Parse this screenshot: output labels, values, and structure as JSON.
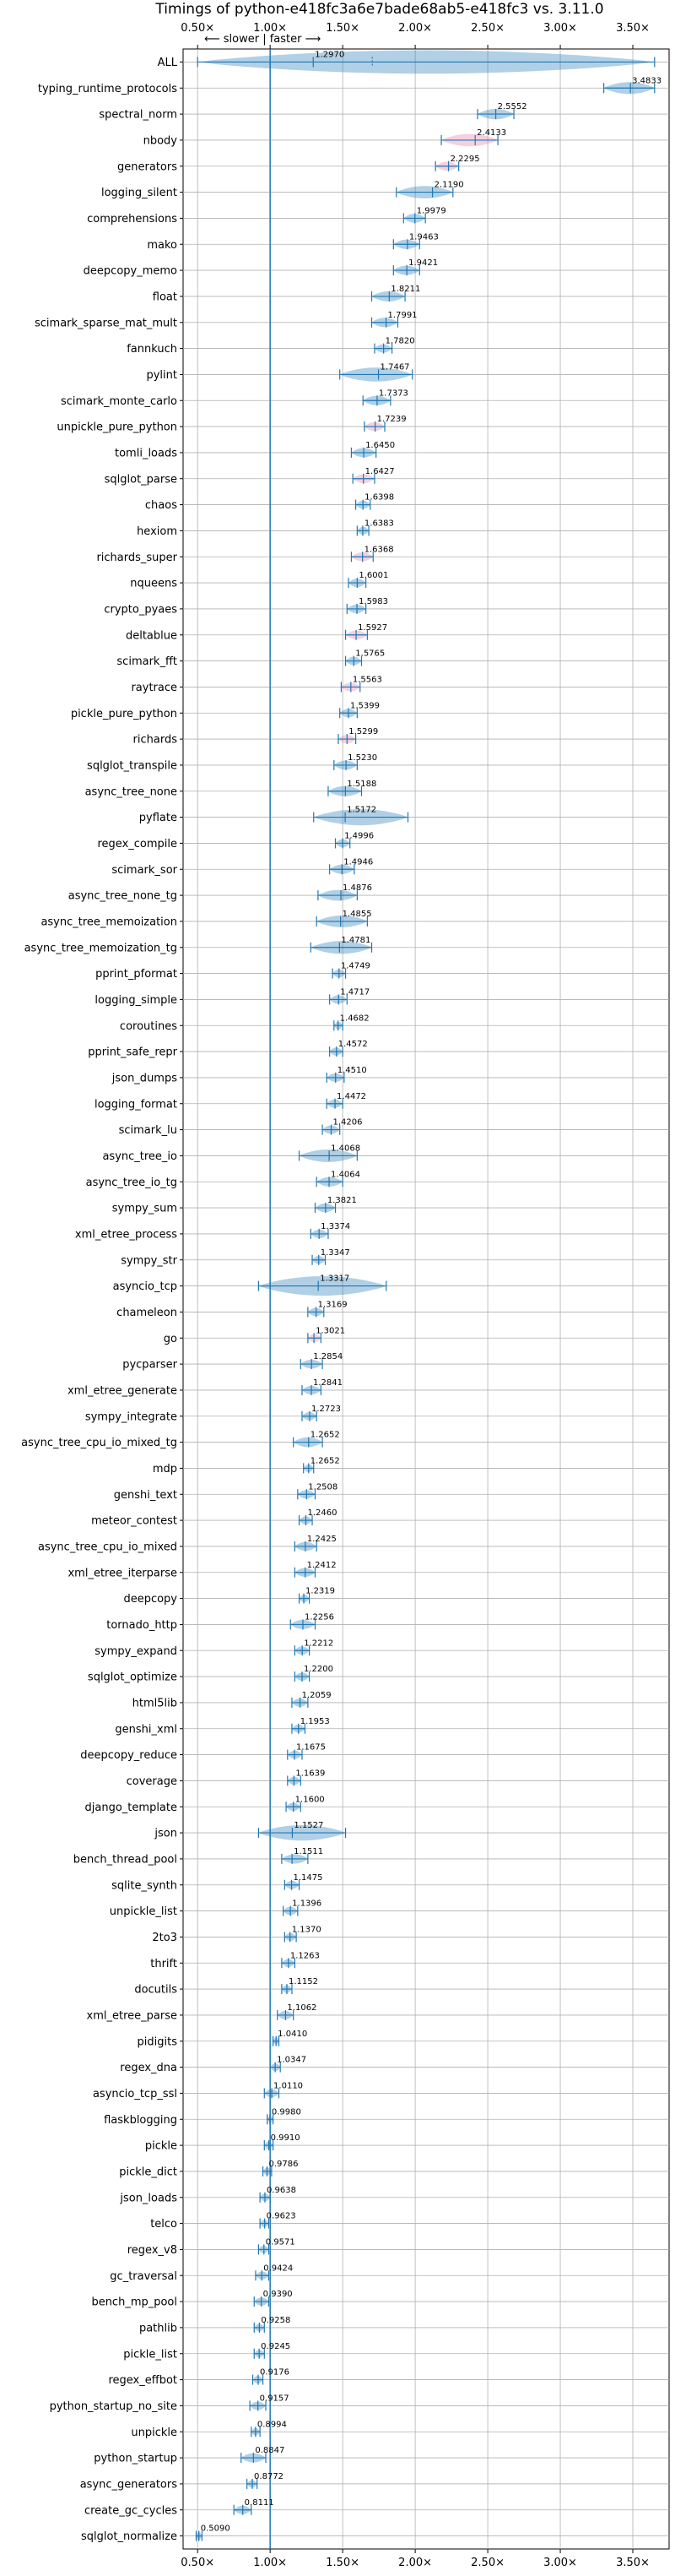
{
  "chart_data": {
    "type": "violin",
    "title": "Timings of python-e418fc3a6e7bade68ab5-e418fc3 vs. 3.11.0",
    "direction_label": "⟵ slower | faster ⟶",
    "xlim": [
      0.4,
      3.75
    ],
    "xticks": [
      0.5,
      1.0,
      1.5,
      2.0,
      2.5,
      3.0,
      3.5
    ],
    "xtick_labels": [
      "0.50×",
      "1.00×",
      "1.50×",
      "2.00×",
      "2.50×",
      "3.00×",
      "3.50×"
    ],
    "reference_line": 1.0,
    "grid": true,
    "colors": {
      "normal": "#1f77b4",
      "highlight": "#e377a0"
    },
    "benchmarks": [
      {
        "name": "ALL",
        "value": 1.297,
        "min": 0.5,
        "max": 3.65,
        "highlight": false
      },
      {
        "name": "typing_runtime_protocols",
        "value": 3.4833,
        "min": 3.3,
        "max": 3.65,
        "highlight": false
      },
      {
        "name": "spectral_norm",
        "value": 2.5552,
        "min": 2.43,
        "max": 2.68,
        "highlight": false
      },
      {
        "name": "nbody",
        "value": 2.4133,
        "min": 2.18,
        "max": 2.57,
        "highlight": true
      },
      {
        "name": "generators",
        "value": 2.2295,
        "min": 2.14,
        "max": 2.3,
        "highlight": true
      },
      {
        "name": "logging_silent",
        "value": 2.119,
        "min": 1.87,
        "max": 2.26,
        "highlight": false
      },
      {
        "name": "comprehensions",
        "value": 1.9979,
        "min": 1.92,
        "max": 2.07,
        "highlight": false
      },
      {
        "name": "mako",
        "value": 1.9463,
        "min": 1.85,
        "max": 2.03,
        "highlight": false
      },
      {
        "name": "deepcopy_memo",
        "value": 1.9421,
        "min": 1.85,
        "max": 2.03,
        "highlight": false
      },
      {
        "name": "float",
        "value": 1.8211,
        "min": 1.7,
        "max": 1.93,
        "highlight": false
      },
      {
        "name": "scimark_sparse_mat_mult",
        "value": 1.7991,
        "min": 1.7,
        "max": 1.88,
        "highlight": false
      },
      {
        "name": "fannkuch",
        "value": 1.782,
        "min": 1.72,
        "max": 1.84,
        "highlight": false
      },
      {
        "name": "pylint",
        "value": 1.7467,
        "min": 1.48,
        "max": 1.98,
        "highlight": false
      },
      {
        "name": "scimark_monte_carlo",
        "value": 1.7373,
        "min": 1.64,
        "max": 1.83,
        "highlight": false
      },
      {
        "name": "unpickle_pure_python",
        "value": 1.7239,
        "min": 1.65,
        "max": 1.79,
        "highlight": true
      },
      {
        "name": "tomli_loads",
        "value": 1.645,
        "min": 1.56,
        "max": 1.73,
        "highlight": false
      },
      {
        "name": "sqlglot_parse",
        "value": 1.6427,
        "min": 1.57,
        "max": 1.72,
        "highlight": true
      },
      {
        "name": "chaos",
        "value": 1.6398,
        "min": 1.59,
        "max": 1.69,
        "highlight": false
      },
      {
        "name": "hexiom",
        "value": 1.6383,
        "min": 1.6,
        "max": 1.68,
        "highlight": false
      },
      {
        "name": "richards_super",
        "value": 1.6368,
        "min": 1.56,
        "max": 1.71,
        "highlight": true
      },
      {
        "name": "nqueens",
        "value": 1.6001,
        "min": 1.54,
        "max": 1.66,
        "highlight": false
      },
      {
        "name": "crypto_pyaes",
        "value": 1.5983,
        "min": 1.53,
        "max": 1.66,
        "highlight": false
      },
      {
        "name": "deltablue",
        "value": 1.5927,
        "min": 1.52,
        "max": 1.67,
        "highlight": true
      },
      {
        "name": "scimark_fft",
        "value": 1.5765,
        "min": 1.52,
        "max": 1.63,
        "highlight": false
      },
      {
        "name": "raytrace",
        "value": 1.5563,
        "min": 1.49,
        "max": 1.62,
        "highlight": true
      },
      {
        "name": "pickle_pure_python",
        "value": 1.5399,
        "min": 1.48,
        "max": 1.6,
        "highlight": false
      },
      {
        "name": "richards",
        "value": 1.5299,
        "min": 1.47,
        "max": 1.59,
        "highlight": true
      },
      {
        "name": "sqlglot_transpile",
        "value": 1.523,
        "min": 1.44,
        "max": 1.6,
        "highlight": false
      },
      {
        "name": "async_tree_none",
        "value": 1.5188,
        "min": 1.4,
        "max": 1.63,
        "highlight": false
      },
      {
        "name": "pyflate",
        "value": 1.5172,
        "min": 1.3,
        "max": 1.95,
        "highlight": false
      },
      {
        "name": "regex_compile",
        "value": 1.4996,
        "min": 1.45,
        "max": 1.55,
        "highlight": false
      },
      {
        "name": "scimark_sor",
        "value": 1.4946,
        "min": 1.41,
        "max": 1.58,
        "highlight": false
      },
      {
        "name": "async_tree_none_tg",
        "value": 1.4876,
        "min": 1.33,
        "max": 1.6,
        "highlight": false
      },
      {
        "name": "async_tree_memoization",
        "value": 1.4855,
        "min": 1.32,
        "max": 1.67,
        "highlight": false
      },
      {
        "name": "async_tree_memoization_tg",
        "value": 1.4781,
        "min": 1.28,
        "max": 1.7,
        "highlight": false
      },
      {
        "name": "pprint_pformat",
        "value": 1.4749,
        "min": 1.43,
        "max": 1.52,
        "highlight": false
      },
      {
        "name": "logging_simple",
        "value": 1.4717,
        "min": 1.41,
        "max": 1.53,
        "highlight": false
      },
      {
        "name": "coroutines",
        "value": 1.4682,
        "min": 1.44,
        "max": 1.5,
        "highlight": false
      },
      {
        "name": "pprint_safe_repr",
        "value": 1.4572,
        "min": 1.41,
        "max": 1.5,
        "highlight": false
      },
      {
        "name": "json_dumps",
        "value": 1.451,
        "min": 1.39,
        "max": 1.51,
        "highlight": false
      },
      {
        "name": "logging_format",
        "value": 1.4472,
        "min": 1.39,
        "max": 1.5,
        "highlight": false
      },
      {
        "name": "scimark_lu",
        "value": 1.4206,
        "min": 1.36,
        "max": 1.48,
        "highlight": false
      },
      {
        "name": "async_tree_io",
        "value": 1.4068,
        "min": 1.2,
        "max": 1.6,
        "highlight": false
      },
      {
        "name": "async_tree_io_tg",
        "value": 1.4064,
        "min": 1.32,
        "max": 1.5,
        "highlight": false
      },
      {
        "name": "sympy_sum",
        "value": 1.3821,
        "min": 1.31,
        "max": 1.45,
        "highlight": false
      },
      {
        "name": "xml_etree_process",
        "value": 1.3374,
        "min": 1.28,
        "max": 1.4,
        "highlight": false
      },
      {
        "name": "sympy_str",
        "value": 1.3347,
        "min": 1.29,
        "max": 1.38,
        "highlight": false
      },
      {
        "name": "asyncio_tcp",
        "value": 1.3317,
        "min": 0.92,
        "max": 1.8,
        "highlight": false
      },
      {
        "name": "chameleon",
        "value": 1.3169,
        "min": 1.26,
        "max": 1.37,
        "highlight": false
      },
      {
        "name": "go",
        "value": 1.3021,
        "min": 1.26,
        "max": 1.35,
        "highlight": true
      },
      {
        "name": "pycparser",
        "value": 1.2854,
        "min": 1.21,
        "max": 1.36,
        "highlight": false
      },
      {
        "name": "xml_etree_generate",
        "value": 1.2841,
        "min": 1.22,
        "max": 1.35,
        "highlight": false
      },
      {
        "name": "sympy_integrate",
        "value": 1.2723,
        "min": 1.22,
        "max": 1.32,
        "highlight": false
      },
      {
        "name": "async_tree_cpu_io_mixed_tg",
        "value": 1.2652,
        "min": 1.16,
        "max": 1.36,
        "highlight": false
      },
      {
        "name": "mdp",
        "value": 1.2652,
        "min": 1.23,
        "max": 1.3,
        "highlight": false
      },
      {
        "name": "genshi_text",
        "value": 1.2508,
        "min": 1.19,
        "max": 1.31,
        "highlight": false
      },
      {
        "name": "meteor_contest",
        "value": 1.246,
        "min": 1.2,
        "max": 1.29,
        "highlight": false
      },
      {
        "name": "async_tree_cpu_io_mixed",
        "value": 1.2425,
        "min": 1.17,
        "max": 1.32,
        "highlight": false
      },
      {
        "name": "xml_etree_iterparse",
        "value": 1.2412,
        "min": 1.17,
        "max": 1.31,
        "highlight": false
      },
      {
        "name": "deepcopy",
        "value": 1.2319,
        "min": 1.2,
        "max": 1.27,
        "highlight": false
      },
      {
        "name": "tornado_http",
        "value": 1.2256,
        "min": 1.14,
        "max": 1.31,
        "highlight": false
      },
      {
        "name": "sympy_expand",
        "value": 1.2212,
        "min": 1.17,
        "max": 1.27,
        "highlight": false
      },
      {
        "name": "sqlglot_optimize",
        "value": 1.22,
        "min": 1.17,
        "max": 1.27,
        "highlight": false
      },
      {
        "name": "html5lib",
        "value": 1.2059,
        "min": 1.15,
        "max": 1.26,
        "highlight": false
      },
      {
        "name": "genshi_xml",
        "value": 1.1953,
        "min": 1.15,
        "max": 1.24,
        "highlight": false
      },
      {
        "name": "deepcopy_reduce",
        "value": 1.1675,
        "min": 1.12,
        "max": 1.22,
        "highlight": false
      },
      {
        "name": "coverage",
        "value": 1.1639,
        "min": 1.12,
        "max": 1.21,
        "highlight": false
      },
      {
        "name": "django_template",
        "value": 1.16,
        "min": 1.11,
        "max": 1.21,
        "highlight": false
      },
      {
        "name": "json",
        "value": 1.1527,
        "min": 0.92,
        "max": 1.52,
        "highlight": false
      },
      {
        "name": "bench_thread_pool",
        "value": 1.1511,
        "min": 1.08,
        "max": 1.26,
        "highlight": false
      },
      {
        "name": "sqlite_synth",
        "value": 1.1475,
        "min": 1.1,
        "max": 1.2,
        "highlight": false
      },
      {
        "name": "unpickle_list",
        "value": 1.1396,
        "min": 1.09,
        "max": 1.19,
        "highlight": false
      },
      {
        "name": "2to3",
        "value": 1.137,
        "min": 1.1,
        "max": 1.18,
        "highlight": false
      },
      {
        "name": "thrift",
        "value": 1.1263,
        "min": 1.08,
        "max": 1.17,
        "highlight": false
      },
      {
        "name": "docutils",
        "value": 1.1152,
        "min": 1.08,
        "max": 1.15,
        "highlight": false
      },
      {
        "name": "xml_etree_parse",
        "value": 1.1062,
        "min": 1.05,
        "max": 1.16,
        "highlight": false
      },
      {
        "name": "pidigits",
        "value": 1.041,
        "min": 1.02,
        "max": 1.06,
        "highlight": false
      },
      {
        "name": "regex_dna",
        "value": 1.0347,
        "min": 1.0,
        "max": 1.07,
        "highlight": false
      },
      {
        "name": "asyncio_tcp_ssl",
        "value": 1.011,
        "min": 0.96,
        "max": 1.06,
        "highlight": false
      },
      {
        "name": "flaskblogging",
        "value": 0.998,
        "min": 0.98,
        "max": 1.02,
        "highlight": false
      },
      {
        "name": "pickle",
        "value": 0.991,
        "min": 0.96,
        "max": 1.02,
        "highlight": false
      },
      {
        "name": "pickle_dict",
        "value": 0.9786,
        "min": 0.95,
        "max": 1.01,
        "highlight": false
      },
      {
        "name": "json_loads",
        "value": 0.9638,
        "min": 0.93,
        "max": 1.0,
        "highlight": false
      },
      {
        "name": "telco",
        "value": 0.9623,
        "min": 0.93,
        "max": 0.99,
        "highlight": false
      },
      {
        "name": "regex_v8",
        "value": 0.9571,
        "min": 0.92,
        "max": 0.99,
        "highlight": false
      },
      {
        "name": "gc_traversal",
        "value": 0.9424,
        "min": 0.9,
        "max": 0.99,
        "highlight": false
      },
      {
        "name": "bench_mp_pool",
        "value": 0.939,
        "min": 0.89,
        "max": 0.99,
        "highlight": false
      },
      {
        "name": "pathlib",
        "value": 0.9258,
        "min": 0.89,
        "max": 0.96,
        "highlight": false
      },
      {
        "name": "pickle_list",
        "value": 0.9245,
        "min": 0.89,
        "max": 0.96,
        "highlight": false
      },
      {
        "name": "regex_effbot",
        "value": 0.9176,
        "min": 0.88,
        "max": 0.95,
        "highlight": false
      },
      {
        "name": "python_startup_no_site",
        "value": 0.9157,
        "min": 0.86,
        "max": 0.97,
        "highlight": false
      },
      {
        "name": "unpickle",
        "value": 0.8994,
        "min": 0.87,
        "max": 0.93,
        "highlight": false
      },
      {
        "name": "python_startup",
        "value": 0.8847,
        "min": 0.8,
        "max": 0.97,
        "highlight": false
      },
      {
        "name": "async_generators",
        "value": 0.8772,
        "min": 0.84,
        "max": 0.91,
        "highlight": false
      },
      {
        "name": "create_gc_cycles",
        "value": 0.8111,
        "min": 0.75,
        "max": 0.87,
        "highlight": false
      },
      {
        "name": "sqlglot_normalize",
        "value": 0.509,
        "min": 0.49,
        "max": 0.53,
        "highlight": false
      }
    ]
  }
}
